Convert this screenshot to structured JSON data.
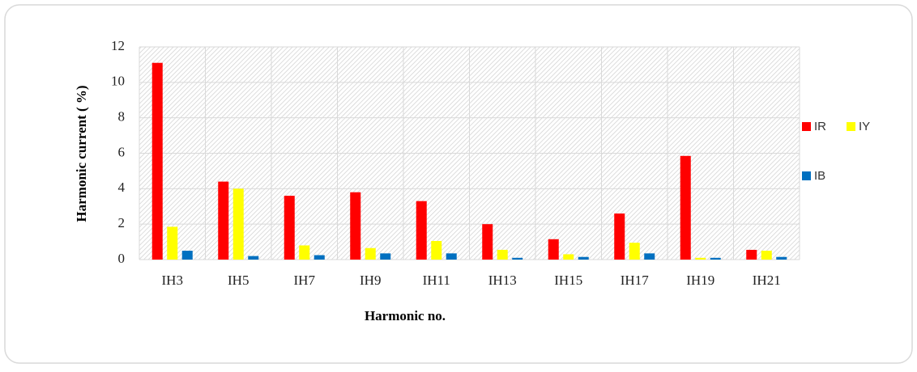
{
  "chart_data": {
    "type": "bar",
    "x_label": "Harmonic no.",
    "y_label": "Harmonic current ( %)",
    "categories": [
      "IH3",
      "IH5",
      "IH7",
      "IH9",
      "IH11",
      "IH13",
      "IH15",
      "IH17",
      "IH19",
      "IH21"
    ],
    "series": [
      {
        "name": "IR",
        "color": "#ff0000",
        "values": [
          11.1,
          4.4,
          3.6,
          3.8,
          3.3,
          2.0,
          1.15,
          2.6,
          5.85,
          0.55
        ]
      },
      {
        "name": "IY",
        "color": "#ffff00",
        "values": [
          1.85,
          4.0,
          0.8,
          0.65,
          1.05,
          0.55,
          0.3,
          0.95,
          0.1,
          0.5
        ]
      },
      {
        "name": "IB",
        "color": "#0070c0",
        "values": [
          0.5,
          0.2,
          0.25,
          0.35,
          0.35,
          0.1,
          0.15,
          0.35,
          0.1,
          0.15
        ]
      }
    ],
    "ylim": [
      0,
      12
    ],
    "yticks": [
      0,
      2,
      4,
      6,
      8,
      10,
      12
    ],
    "grid": true,
    "legend": "right"
  }
}
